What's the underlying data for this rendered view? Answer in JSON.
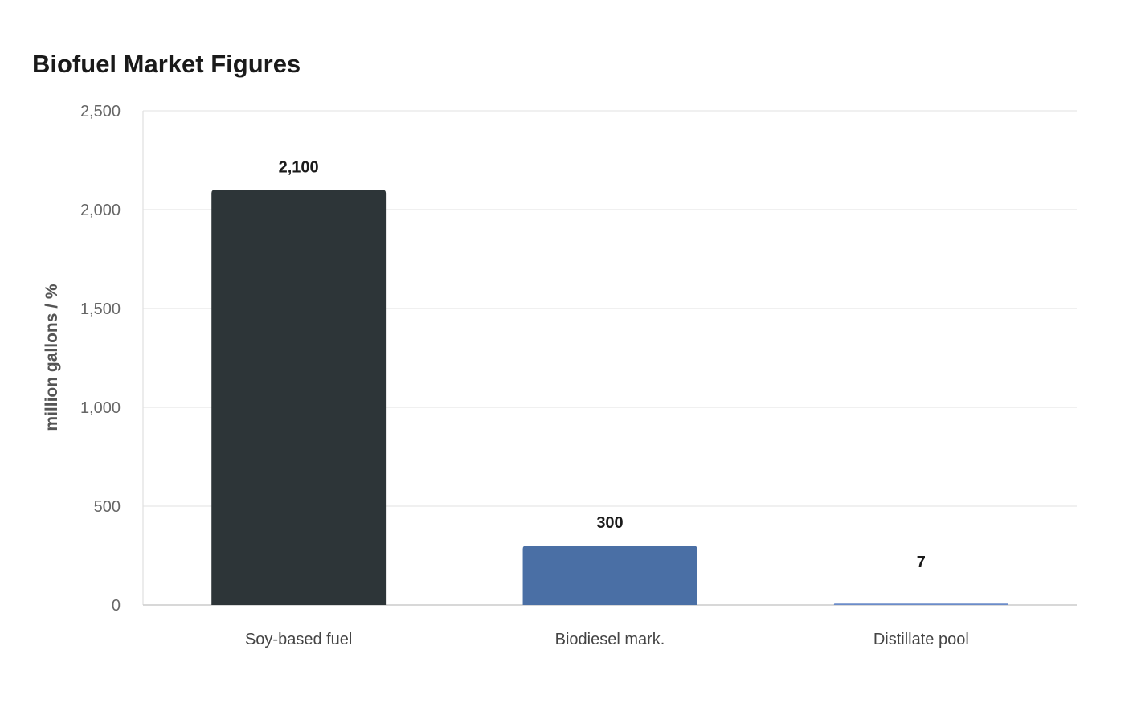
{
  "chart_data": {
    "type": "bar",
    "title": "Biofuel Market Figures",
    "xlabel": "",
    "ylabel": "million gallons / %",
    "categories": [
      "Soy-based fuel",
      "Biodiesel mark.",
      "Distillate pool"
    ],
    "values": [
      2100,
      300,
      7
    ],
    "value_labels": [
      "2,100",
      "300",
      "7"
    ],
    "ylim": [
      0,
      2500
    ],
    "yticks": [
      0,
      500,
      1000,
      1500,
      2000,
      2500
    ],
    "ytick_labels": [
      "0",
      "500",
      "1,000",
      "1,500",
      "2,000",
      "2,500"
    ],
    "colors": [
      "#2d3538",
      "#4a6fa5",
      "#6b8cc9"
    ],
    "grid": true,
    "legend": "none"
  }
}
